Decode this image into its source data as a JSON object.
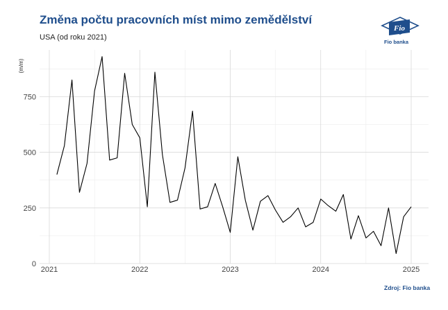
{
  "header": {
    "title": "Změna počtu pracovních míst mimo zemědělství",
    "subtitle": "USA (od roku 2021)"
  },
  "logo": {
    "mark_text": "Fio",
    "brand_text": "Fio banka",
    "icon": "fio-flag-logo-icon"
  },
  "footer": {
    "source": "Zdroj: Fio banka"
  },
  "colors": {
    "title": "#1f4e8c",
    "line": "#000000",
    "grid_major": "#d9d9d9",
    "grid_minor": "#ececec"
  },
  "chart_data": {
    "type": "line",
    "title": "Změna počtu pracovních míst mimo zemědělství",
    "subtitle": "USA (od roku 2021)",
    "xlabel": "",
    "ylabel": "(m/m)",
    "grid": true,
    "legend": "none",
    "xlim": [
      "2021-01",
      "2025-02"
    ],
    "ylim": [
      0,
      960
    ],
    "y_ticks": [
      0,
      250,
      500,
      750
    ],
    "x_ticks": [
      {
        "x": "2021-01",
        "label": "2021"
      },
      {
        "x": "2022-01",
        "label": "2022"
      },
      {
        "x": "2023-01",
        "label": "2023"
      },
      {
        "x": "2024-01",
        "label": "2024"
      },
      {
        "x": "2025-01",
        "label": "2025"
      }
    ],
    "series": [
      {
        "x": [
          "2021-02",
          "2021-03",
          "2021-04",
          "2021-05",
          "2021-06",
          "2021-07",
          "2021-08",
          "2021-09",
          "2021-10",
          "2021-11",
          "2021-12",
          "2022-01",
          "2022-02",
          "2022-03",
          "2022-04",
          "2022-05",
          "2022-06",
          "2022-07",
          "2022-08",
          "2022-09",
          "2022-10",
          "2022-11",
          "2022-12",
          "2023-01",
          "2023-02",
          "2023-03",
          "2023-04",
          "2023-05",
          "2023-06",
          "2023-07",
          "2023-08",
          "2023-09",
          "2023-10",
          "2023-11",
          "2023-12",
          "2024-01",
          "2024-02",
          "2024-03",
          "2024-04",
          "2024-05",
          "2024-06",
          "2024-07",
          "2024-08",
          "2024-09",
          "2024-10",
          "2024-11",
          "2024-12",
          "2025-01"
        ],
        "values": [
          400,
          530,
          825,
          320,
          450,
          775,
          930,
          465,
          475,
          855,
          625,
          565,
          255,
          860,
          490,
          275,
          285,
          430,
          685,
          245,
          255,
          360,
          255,
          140,
          480,
          285,
          150,
          280,
          305,
          240,
          185,
          210,
          250,
          165,
          185,
          290,
          260,
          235,
          310,
          110,
          215,
          115,
          145,
          80,
          250,
          45,
          210,
          255
        ]
      }
    ]
  }
}
